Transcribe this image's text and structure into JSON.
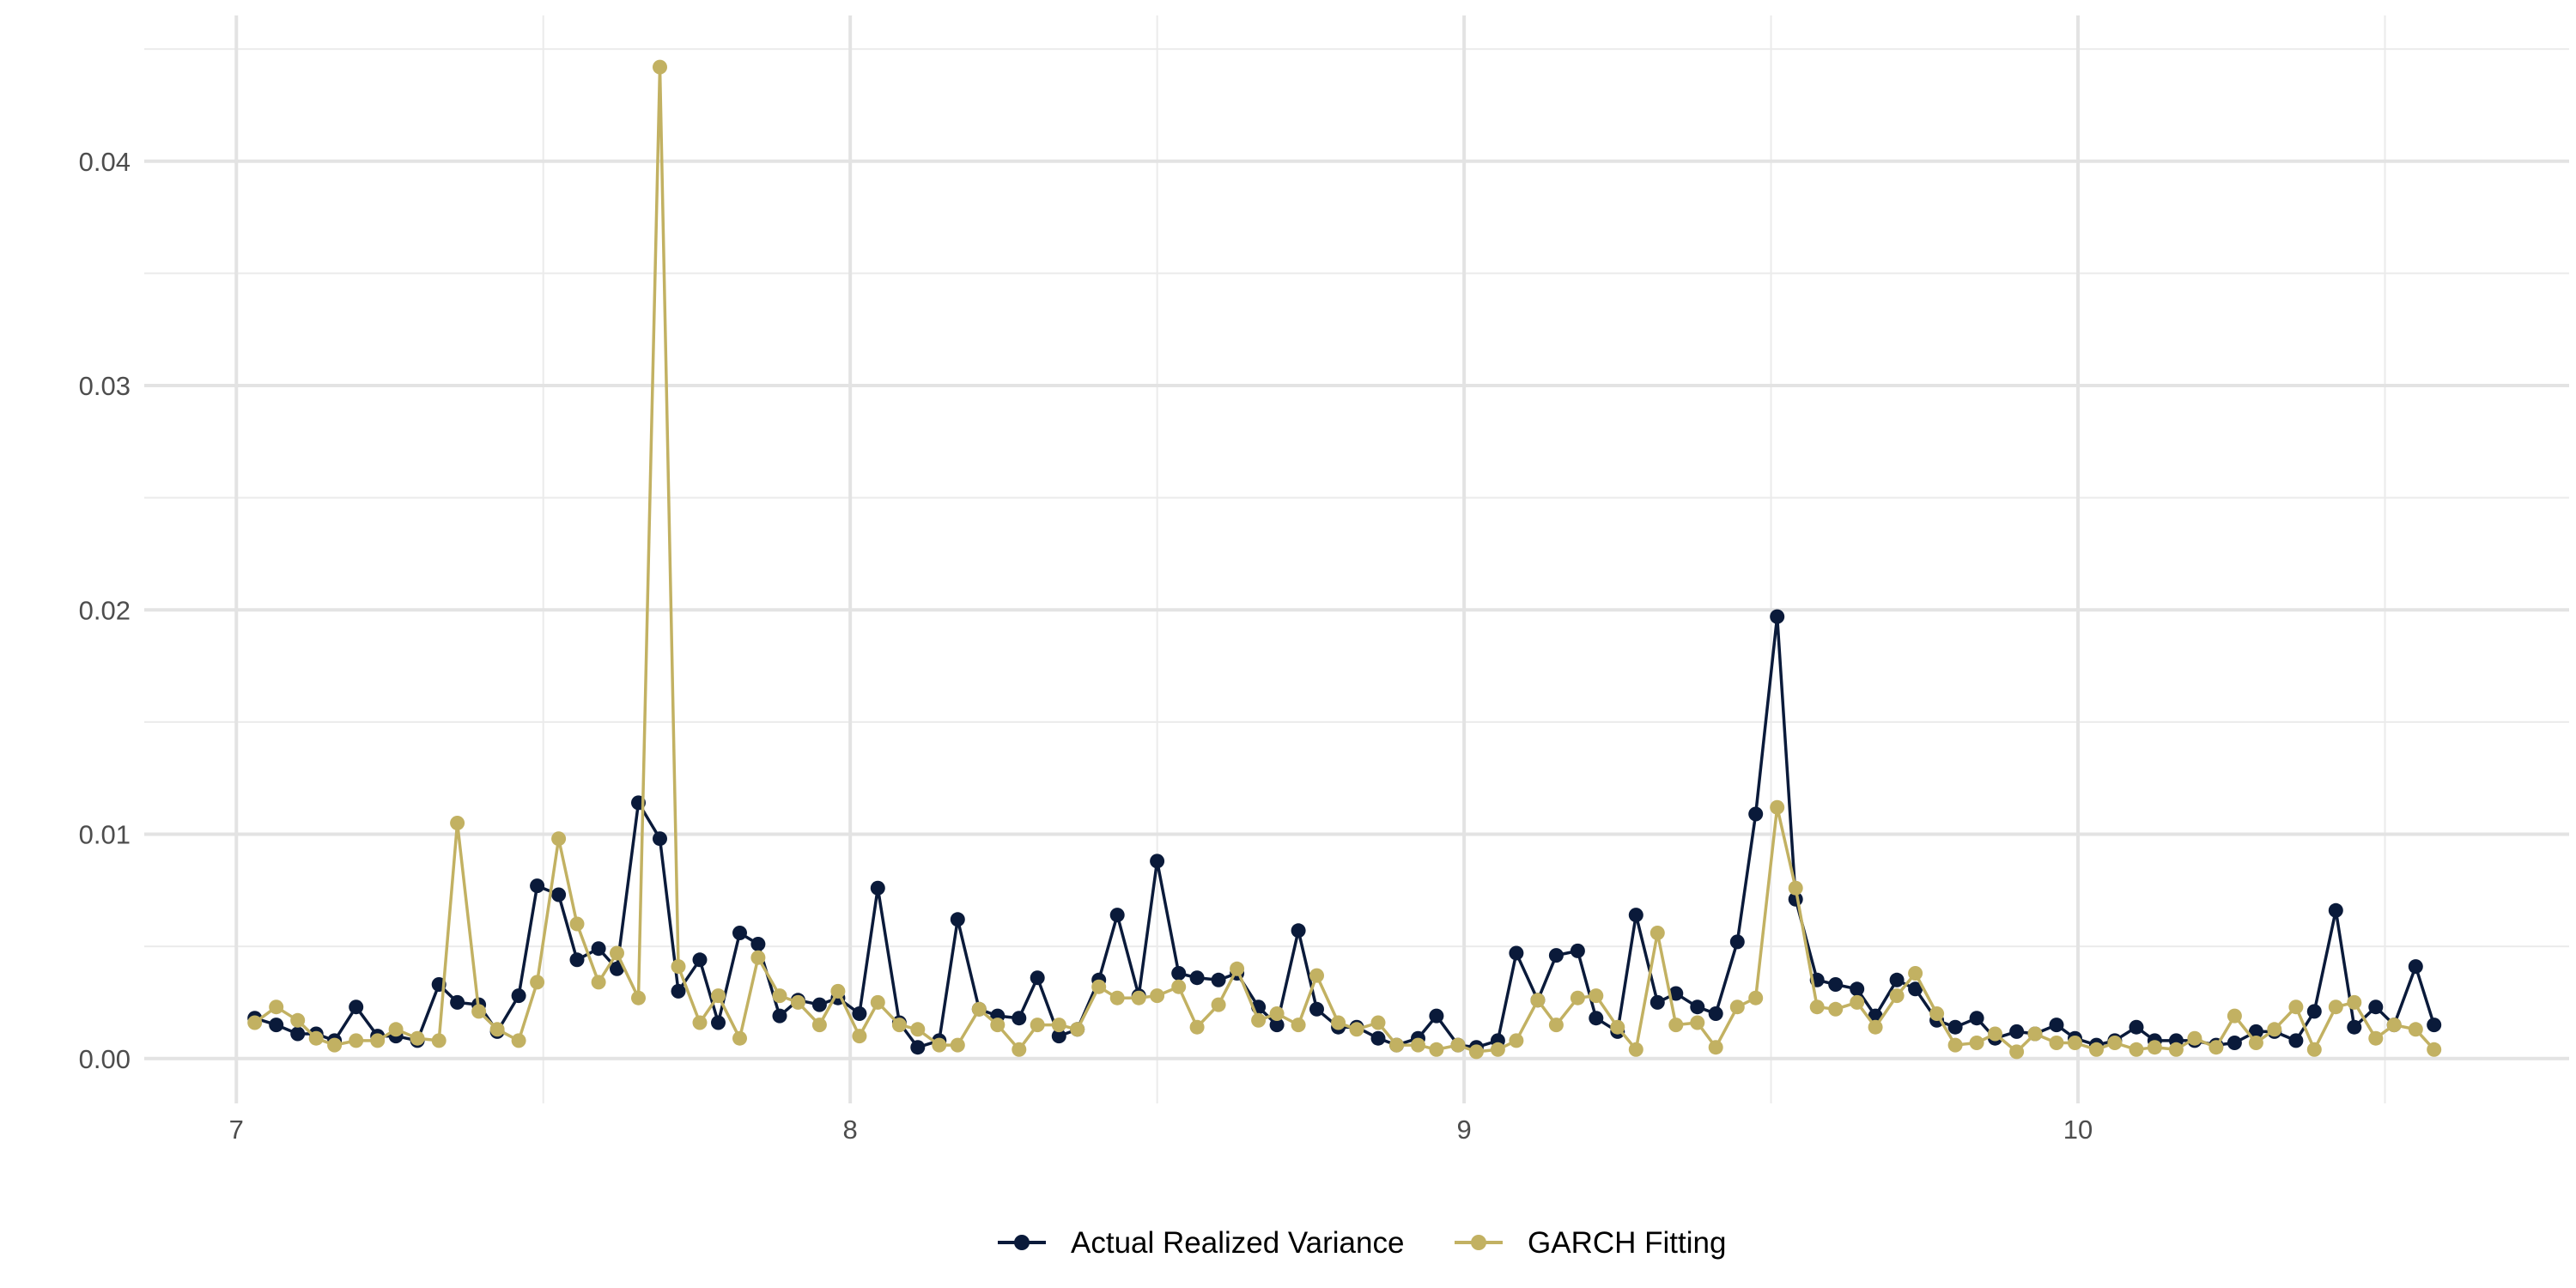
{
  "chart_data": {
    "type": "line",
    "title": "",
    "xlabel": "",
    "ylabel": "",
    "xlim": [
      6.85,
      10.8
    ],
    "ylim": [
      -0.002,
      0.0465
    ],
    "x_ticks": [
      7,
      8,
      9,
      10
    ],
    "x_tick_labels": [
      "7",
      "8",
      "9",
      "10"
    ],
    "y_ticks": [
      0.0,
      0.01,
      0.02,
      0.03,
      0.04
    ],
    "y_tick_labels": [
      "0.00",
      "0.01",
      "0.02",
      "0.03",
      "0.04"
    ],
    "grid": true,
    "legend_position": "bottom",
    "series": [
      {
        "name": "Actual Realized Variance",
        "color": "#0a1a3a",
        "x": [
          7.03,
          7.065,
          7.1,
          7.13,
          7.16,
          7.195,
          7.23,
          7.26,
          7.295,
          7.33,
          7.36,
          7.395,
          7.425,
          7.46,
          7.49,
          7.525,
          7.555,
          7.59,
          7.62,
          7.655,
          7.69,
          7.72,
          7.755,
          7.785,
          7.82,
          7.85,
          7.885,
          7.915,
          7.95,
          7.98,
          8.015,
          8.045,
          8.08,
          8.11,
          8.145,
          8.175,
          8.21,
          8.24,
          8.275,
          8.305,
          8.34,
          8.37,
          8.405,
          8.435,
          8.47,
          8.5,
          8.535,
          8.565,
          8.6,
          8.63,
          8.665,
          8.695,
          8.73,
          8.76,
          8.795,
          8.825,
          8.86,
          8.89,
          8.925,
          8.955,
          8.99,
          9.02,
          9.055,
          9.085,
          9.12,
          9.15,
          9.185,
          9.215,
          9.25,
          9.28,
          9.315,
          9.345,
          9.38,
          9.41,
          9.445,
          9.475,
          9.51,
          9.54,
          9.575,
          9.605,
          9.64,
          9.67,
          9.705,
          9.735,
          9.77,
          9.8,
          9.835,
          9.865,
          9.9,
          9.93,
          9.965,
          9.995,
          10.03,
          10.06,
          10.095,
          10.125,
          10.16,
          10.19,
          10.225,
          10.255,
          10.29,
          10.32,
          10.355,
          10.385,
          10.42,
          10.45,
          10.485,
          10.515,
          10.55,
          10.58
        ],
        "y": [
          0.0018,
          0.0015,
          0.0011,
          0.0011,
          0.0008,
          0.0023,
          0.001,
          0.001,
          0.0008,
          0.0033,
          0.0025,
          0.0024,
          0.0012,
          0.0028,
          0.0077,
          0.0073,
          0.0044,
          0.0049,
          0.004,
          0.0114,
          0.0098,
          0.003,
          0.0044,
          0.0016,
          0.0056,
          0.0051,
          0.0019,
          0.0026,
          0.0024,
          0.0027,
          0.002,
          0.0076,
          0.0016,
          0.0005,
          0.0008,
          0.0062,
          0.0022,
          0.0019,
          0.0018,
          0.0036,
          0.001,
          0.0013,
          0.0035,
          0.0064,
          0.0028,
          0.0088,
          0.0038,
          0.0036,
          0.0035,
          0.0038,
          0.0023,
          0.0015,
          0.0057,
          0.0022,
          0.0014,
          0.0014,
          0.0009,
          0.0006,
          0.0009,
          0.0019,
          0.0006,
          0.0005,
          0.0008,
          0.0047,
          0.0026,
          0.0046,
          0.0048,
          0.0018,
          0.0012,
          0.0064,
          0.0025,
          0.0029,
          0.0023,
          0.002,
          0.0052,
          0.0109,
          0.0197,
          0.0071,
          0.0035,
          0.0033,
          0.0031,
          0.0019,
          0.0035,
          0.0031,
          0.0017,
          0.0014,
          0.0018,
          0.0009,
          0.0012,
          0.0011,
          0.0015,
          0.0009,
          0.0006,
          0.0008,
          0.0014,
          0.0008,
          0.0008,
          0.0008,
          0.0006,
          0.0007,
          0.0012,
          0.0012,
          0.0008,
          0.0021,
          0.0066,
          0.0014,
          0.0023,
          0.0015,
          0.0041,
          0.0015
        ]
      },
      {
        "name": "GARCH Fitting",
        "color": "#c2b162",
        "x": [
          7.03,
          7.065,
          7.1,
          7.13,
          7.16,
          7.195,
          7.23,
          7.26,
          7.295,
          7.33,
          7.36,
          7.395,
          7.425,
          7.46,
          7.49,
          7.525,
          7.555,
          7.59,
          7.62,
          7.655,
          7.69,
          7.72,
          7.755,
          7.785,
          7.82,
          7.85,
          7.885,
          7.915,
          7.95,
          7.98,
          8.015,
          8.045,
          8.08,
          8.11,
          8.145,
          8.175,
          8.21,
          8.24,
          8.275,
          8.305,
          8.34,
          8.37,
          8.405,
          8.435,
          8.47,
          8.5,
          8.535,
          8.565,
          8.6,
          8.63,
          8.665,
          8.695,
          8.73,
          8.76,
          8.795,
          8.825,
          8.86,
          8.89,
          8.925,
          8.955,
          8.99,
          9.02,
          9.055,
          9.085,
          9.12,
          9.15,
          9.185,
          9.215,
          9.25,
          9.28,
          9.315,
          9.345,
          9.38,
          9.41,
          9.445,
          9.475,
          9.51,
          9.54,
          9.575,
          9.605,
          9.64,
          9.67,
          9.705,
          9.735,
          9.77,
          9.8,
          9.835,
          9.865,
          9.9,
          9.93,
          9.965,
          9.995,
          10.03,
          10.06,
          10.095,
          10.125,
          10.16,
          10.19,
          10.225,
          10.255,
          10.29,
          10.32,
          10.355,
          10.385,
          10.42,
          10.45,
          10.485,
          10.515,
          10.55,
          10.58
        ],
        "y": [
          0.0016,
          0.0023,
          0.0017,
          0.0009,
          0.0006,
          0.0008,
          0.0008,
          0.0013,
          0.0009,
          0.0008,
          0.0105,
          0.0021,
          0.0013,
          0.0008,
          0.0034,
          0.0098,
          0.006,
          0.0034,
          0.0047,
          0.0027,
          0.0442,
          0.0041,
          0.0016,
          0.0028,
          0.0009,
          0.0045,
          0.0028,
          0.0025,
          0.0015,
          0.003,
          0.001,
          0.0025,
          0.0015,
          0.0013,
          0.0006,
          0.0006,
          0.0022,
          0.0015,
          0.0004,
          0.0015,
          0.0015,
          0.0013,
          0.0032,
          0.0027,
          0.0027,
          0.0028,
          0.0032,
          0.0014,
          0.0024,
          0.004,
          0.0017,
          0.002,
          0.0015,
          0.0037,
          0.0016,
          0.0013,
          0.0016,
          0.0006,
          0.0006,
          0.0004,
          0.0006,
          0.0003,
          0.0004,
          0.0008,
          0.0026,
          0.0015,
          0.0027,
          0.0028,
          0.0014,
          0.0004,
          0.0056,
          0.0015,
          0.0016,
          0.0005,
          0.0023,
          0.0027,
          0.0112,
          0.0076,
          0.0023,
          0.0022,
          0.0025,
          0.0014,
          0.0028,
          0.0038,
          0.002,
          0.0006,
          0.0007,
          0.0011,
          0.0003,
          0.0011,
          0.0007,
          0.0007,
          0.0004,
          0.0007,
          0.0004,
          0.0005,
          0.0004,
          0.0009,
          0.0005,
          0.0019,
          0.0007,
          0.0013,
          0.0023,
          0.0004,
          0.0023,
          0.0025,
          0.0009,
          0.0015,
          0.0013,
          0.0004
        ]
      }
    ]
  }
}
